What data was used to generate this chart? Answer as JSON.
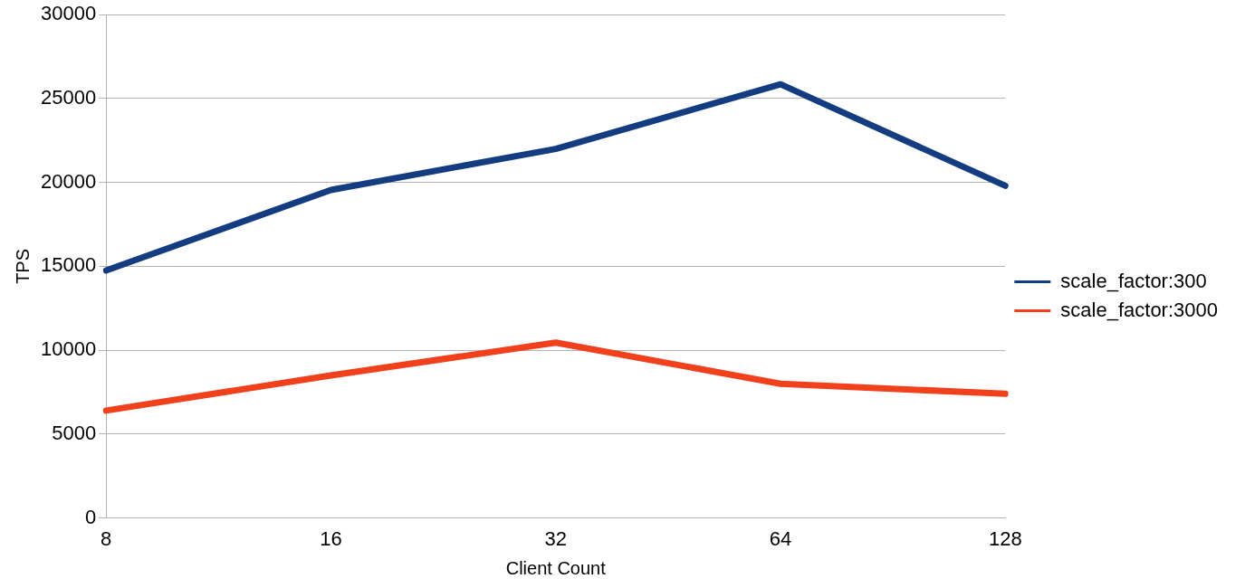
{
  "chart_data": {
    "type": "line",
    "xlabel": "Client Count",
    "ylabel": "TPS",
    "categories": [
      "8",
      "16",
      "32",
      "64",
      "128"
    ],
    "series": [
      {
        "name": "scale_factor:300",
        "color": "#143c80",
        "values": [
          14750,
          19550,
          22000,
          25850,
          19800
        ]
      },
      {
        "name": "scale_factor:3000",
        "color": "#f0401c",
        "values": [
          6400,
          8500,
          10450,
          8000,
          7400
        ]
      }
    ],
    "ylim": [
      0,
      30000
    ],
    "yticks": [
      0,
      5000,
      10000,
      15000,
      20000,
      25000,
      30000
    ],
    "grid": "y",
    "legend": "right",
    "marker": "none",
    "line_style": "solid"
  }
}
